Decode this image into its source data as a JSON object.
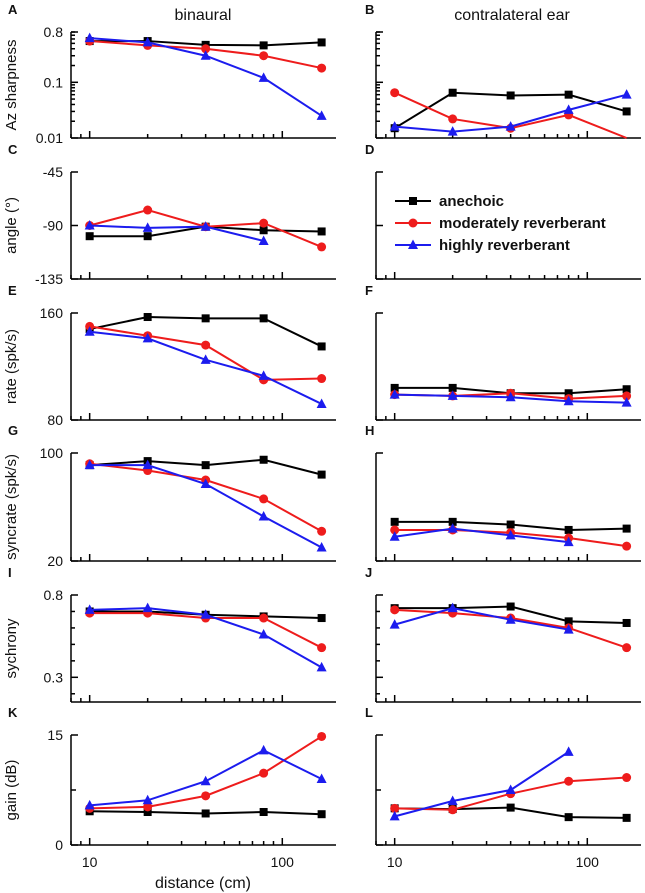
{
  "column_titles": [
    "binaural",
    "contralateral ear"
  ],
  "xlabel": "distance (cm)",
  "x_ticks": [
    "10",
    "100"
  ],
  "legend": [
    {
      "key": "anechoic",
      "label": "anechoic",
      "color": "#000000",
      "marker": "square"
    },
    {
      "key": "moderately",
      "label": "moderately reverberant",
      "color": "#ee1c1c",
      "marker": "circle"
    },
    {
      "key": "highly",
      "label": "highly reverberant",
      "color": "#1c1cee",
      "marker": "triangle"
    }
  ],
  "chart_data": [
    {
      "panel": "A",
      "type": "line",
      "xscale": "log",
      "yscale": "log",
      "ylabel": "Az  sharpness",
      "ylim": [
        0.01,
        0.8
      ],
      "yticks": [
        "0.8",
        "0.1",
        "0.01"
      ],
      "x": [
        10,
        20,
        40,
        80,
        160
      ],
      "series": [
        {
          "name": "anechoic",
          "values": [
            0.55,
            0.55,
            0.47,
            0.46,
            0.52
          ]
        },
        {
          "name": "moderately reverberant",
          "values": [
            0.55,
            0.46,
            0.4,
            0.3,
            0.18
          ]
        },
        {
          "name": "highly reverberant",
          "values": [
            0.62,
            0.52,
            0.3,
            0.12,
            0.025
          ]
        }
      ]
    },
    {
      "panel": "B",
      "type": "line",
      "xscale": "log",
      "yscale": "log",
      "ylabel": "",
      "ylim": [
        0.01,
        0.8
      ],
      "yticks": [],
      "x": [
        10,
        20,
        40,
        80,
        160
      ],
      "series": [
        {
          "name": "anechoic",
          "values": [
            0.015,
            0.065,
            0.058,
            0.06,
            0.03
          ]
        },
        {
          "name": "moderately reverberant",
          "values": [
            0.065,
            0.022,
            0.015,
            0.026,
            0.009
          ]
        },
        {
          "name": "highly reverberant",
          "values": [
            0.016,
            0.013,
            0.016,
            0.032,
            0.06
          ]
        }
      ]
    },
    {
      "panel": "C",
      "type": "line",
      "xscale": "log",
      "yscale": "linear",
      "ylabel": "angle (°)",
      "ylim": [
        -135,
        -45
      ],
      "yticks": [
        "-45",
        "-90",
        "-135"
      ],
      "x": [
        10,
        20,
        40,
        80,
        160
      ],
      "series": [
        {
          "name": "anechoic",
          "values": [
            -99,
            -99,
            -91,
            -94,
            -95
          ]
        },
        {
          "name": "moderately reverberant",
          "values": [
            -90,
            -77,
            -91,
            -88,
            -108
          ]
        },
        {
          "name": "highly reverberant",
          "values": [
            -90,
            -92,
            -91,
            null,
            null
          ],
          "extra": [
            [
              80,
              -103
            ]
          ]
        }
      ]
    },
    {
      "panel": "D",
      "type": "line",
      "xscale": "log",
      "yscale": "linear",
      "ylabel": "",
      "ylim": [
        -135,
        -45
      ],
      "yticks": [],
      "series": []
    },
    {
      "panel": "E",
      "type": "line",
      "xscale": "log",
      "yscale": "linear",
      "ylabel": "rate (spk/s)",
      "ylim": [
        80,
        160
      ],
      "yticks": [
        "160",
        "80"
      ],
      "x": [
        10,
        20,
        40,
        80,
        160
      ],
      "series": [
        {
          "name": "anechoic",
          "values": [
            148,
            157,
            156,
            156,
            135
          ]
        },
        {
          "name": "moderately reverberant",
          "values": [
            150,
            143,
            136,
            110,
            111
          ]
        },
        {
          "name": "highly reverberant",
          "values": [
            146,
            141,
            125,
            113,
            92
          ]
        }
      ]
    },
    {
      "panel": "F",
      "type": "line",
      "xscale": "log",
      "yscale": "linear",
      "ylabel": "",
      "ylim": [
        80,
        160
      ],
      "yticks": [],
      "x": [
        10,
        20,
        40,
        80,
        160
      ],
      "series": [
        {
          "name": "anechoic",
          "values": [
            104,
            104,
            100,
            100,
            103
          ]
        },
        {
          "name": "moderately reverberant",
          "values": [
            99,
            98,
            100,
            96,
            98
          ]
        },
        {
          "name": "highly reverberant",
          "values": [
            99,
            98,
            97,
            94,
            93
          ]
        }
      ]
    },
    {
      "panel": "G",
      "type": "line",
      "xscale": "log",
      "yscale": "linear",
      "ylabel": "syncrate (spk/s)",
      "ylim": [
        20,
        100
      ],
      "yticks": [
        "100",
        "20"
      ],
      "x": [
        10,
        20,
        40,
        80,
        160
      ],
      "series": [
        {
          "name": "anechoic",
          "values": [
            91,
            94,
            91,
            95,
            84
          ]
        },
        {
          "name": "moderately reverberant",
          "values": [
            92,
            87,
            80,
            66,
            42
          ]
        },
        {
          "name": "highly reverberant",
          "values": [
            91,
            91,
            77,
            53,
            30
          ]
        }
      ]
    },
    {
      "panel": "H",
      "type": "line",
      "xscale": "log",
      "yscale": "linear",
      "ylabel": "",
      "ylim": [
        20,
        100
      ],
      "yticks": [],
      "x": [
        10,
        20,
        40,
        80,
        160
      ],
      "series": [
        {
          "name": "anechoic",
          "values": [
            49,
            49,
            47,
            43,
            44
          ]
        },
        {
          "name": "moderately reverberant",
          "values": [
            43,
            43,
            41,
            37,
            31
          ]
        },
        {
          "name": "highly reverberant",
          "values": [
            38,
            44,
            39,
            34,
            null
          ]
        }
      ]
    },
    {
      "panel": "I",
      "type": "line",
      "xscale": "log",
      "yscale": "linear",
      "ylabel": "sychrony",
      "ylim": [
        0.15,
        0.8
      ],
      "yticks": [
        "0.8",
        "0.3"
      ],
      "x": [
        10,
        20,
        40,
        80,
        160
      ],
      "series": [
        {
          "name": "anechoic",
          "values": [
            0.7,
            0.7,
            0.68,
            0.67,
            0.66
          ]
        },
        {
          "name": "moderately reverberant",
          "values": [
            0.69,
            0.69,
            0.66,
            0.66,
            0.48
          ]
        },
        {
          "name": "highly reverberant",
          "values": [
            0.71,
            0.72,
            0.68,
            0.56,
            0.36
          ]
        }
      ]
    },
    {
      "panel": "J",
      "type": "line",
      "xscale": "log",
      "yscale": "linear",
      "ylabel": "",
      "ylim": [
        0.15,
        0.8
      ],
      "yticks": [],
      "x": [
        10,
        20,
        40,
        80,
        160
      ],
      "series": [
        {
          "name": "anechoic",
          "values": [
            0.72,
            0.72,
            0.73,
            0.64,
            0.63
          ]
        },
        {
          "name": "moderately reverberant",
          "values": [
            0.71,
            0.69,
            0.66,
            0.6,
            0.48
          ]
        },
        {
          "name": "highly reverberant",
          "values": [
            0.62,
            0.72,
            0.65,
            0.59,
            null
          ]
        }
      ]
    },
    {
      "panel": "K",
      "type": "line",
      "xscale": "log",
      "yscale": "linear",
      "ylabel": "gain (dB)",
      "ylim": [
        0,
        15
      ],
      "yticks": [
        "15",
        "0"
      ],
      "x": [
        10,
        20,
        40,
        80,
        160
      ],
      "series": [
        {
          "name": "anechoic",
          "values": [
            4.6,
            4.5,
            4.3,
            4.5,
            4.2
          ]
        },
        {
          "name": "moderately reverberant",
          "values": [
            5.0,
            5.2,
            6.7,
            9.8,
            14.8
          ]
        },
        {
          "name": "highly reverberant",
          "values": [
            5.4,
            6.1,
            8.7,
            12.9,
            9.0
          ]
        }
      ]
    },
    {
      "panel": "L",
      "type": "line",
      "xscale": "log",
      "yscale": "linear",
      "ylabel": "",
      "ylim": [
        0,
        15
      ],
      "yticks": [],
      "x": [
        10,
        20,
        40,
        80,
        160
      ],
      "series": [
        {
          "name": "anechoic",
          "values": [
            5.0,
            4.9,
            5.1,
            3.8,
            3.7
          ]
        },
        {
          "name": "moderately reverberant",
          "values": [
            5.0,
            4.8,
            7.0,
            8.7,
            9.2
          ]
        },
        {
          "name": "highly reverberant",
          "values": [
            3.9,
            6.0,
            7.5,
            12.7,
            null
          ]
        }
      ]
    }
  ]
}
